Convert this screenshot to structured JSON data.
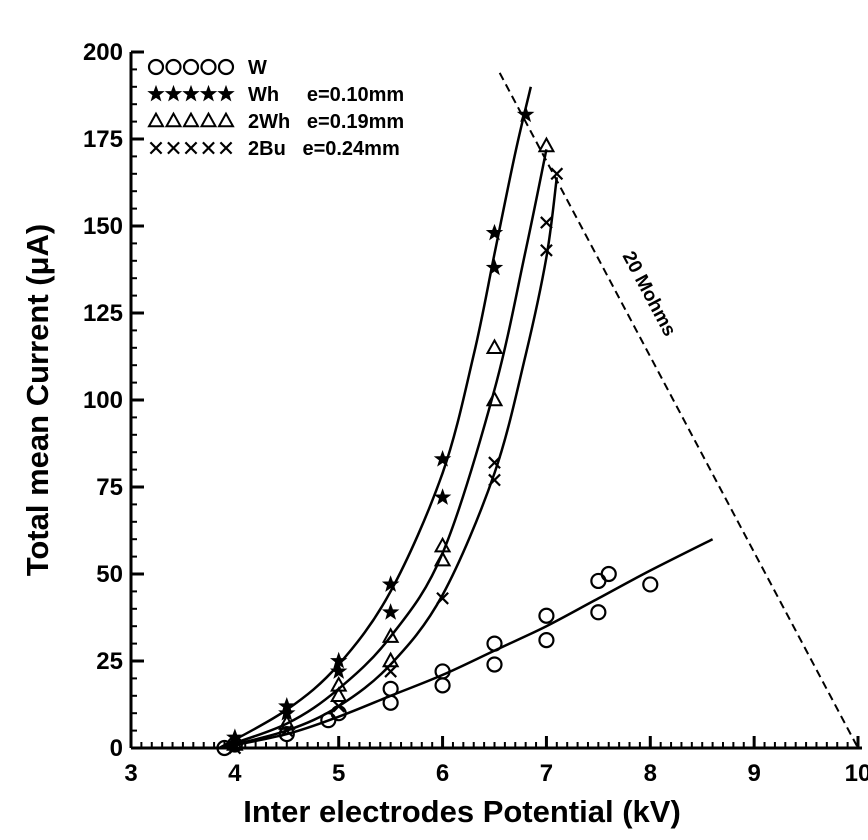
{
  "chart_data": {
    "type": "scatter",
    "title": "",
    "xlabel": "Inter electrodes Potential (kV)",
    "ylabel": "Total mean Current (μA)",
    "xlim": [
      3,
      10
    ],
    "ylim": [
      0,
      200
    ],
    "x_ticks": [
      3,
      4,
      5,
      6,
      7,
      8,
      9,
      10
    ],
    "y_ticks": [
      0,
      25,
      50,
      75,
      100,
      125,
      150,
      175,
      200
    ],
    "x_tick_labels": [
      "3",
      "4",
      "5",
      "6",
      "7",
      "8",
      "9",
      "10"
    ],
    "y_tick_labels": [
      "0",
      "25",
      "50",
      "75",
      "100",
      "125",
      "150",
      "175",
      "200"
    ],
    "grid": false,
    "legend_position": "top-left",
    "series": [
      {
        "name": "W",
        "legend_label": "W",
        "marker": "circle",
        "points": [
          [
            3.9,
            0
          ],
          [
            4.0,
            1
          ],
          [
            4.5,
            4
          ],
          [
            4.9,
            8
          ],
          [
            5.0,
            10
          ],
          [
            5.5,
            13
          ],
          [
            5.5,
            17
          ],
          [
            6.0,
            18
          ],
          [
            6.0,
            22
          ],
          [
            6.5,
            24
          ],
          [
            6.5,
            30
          ],
          [
            7.0,
            31
          ],
          [
            7.0,
            38
          ],
          [
            7.5,
            39
          ],
          [
            7.5,
            48
          ],
          [
            7.6,
            50
          ],
          [
            8.0,
            47
          ]
        ],
        "fit": [
          [
            3.85,
            0
          ],
          [
            4.5,
            4
          ],
          [
            5.0,
            9
          ],
          [
            5.5,
            15
          ],
          [
            6.0,
            21
          ],
          [
            6.5,
            28
          ],
          [
            7.0,
            35
          ],
          [
            7.5,
            43
          ],
          [
            8.0,
            51
          ],
          [
            8.6,
            60
          ]
        ]
      },
      {
        "name": "Wh",
        "legend_label": "Wh     e=0.10mm",
        "marker": "star",
        "points": [
          [
            4.0,
            3
          ],
          [
            4.5,
            10
          ],
          [
            4.5,
            12
          ],
          [
            5.0,
            22
          ],
          [
            5.0,
            25
          ],
          [
            5.5,
            39
          ],
          [
            5.5,
            47
          ],
          [
            6.0,
            72
          ],
          [
            6.0,
            83
          ],
          [
            6.5,
            138
          ],
          [
            6.5,
            148
          ],
          [
            6.8,
            182
          ]
        ],
        "fit": [
          [
            3.85,
            0
          ],
          [
            4.5,
            11
          ],
          [
            5.0,
            24
          ],
          [
            5.5,
            45
          ],
          [
            6.0,
            79
          ],
          [
            6.3,
            113
          ],
          [
            6.5,
            142
          ],
          [
            6.7,
            171
          ],
          [
            6.85,
            190
          ]
        ]
      },
      {
        "name": "2Wh",
        "legend_label": "2Wh   e=0.19mm",
        "marker": "triangle",
        "points": [
          [
            4.0,
            1
          ],
          [
            4.5,
            7
          ],
          [
            5.0,
            15
          ],
          [
            5.0,
            18
          ],
          [
            5.5,
            25
          ],
          [
            5.5,
            32
          ],
          [
            6.0,
            54
          ],
          [
            6.0,
            58
          ],
          [
            6.5,
            100
          ],
          [
            6.5,
            115
          ],
          [
            7.0,
            173
          ]
        ],
        "fit": [
          [
            3.85,
            0
          ],
          [
            4.5,
            7
          ],
          [
            5.0,
            17
          ],
          [
            5.5,
            32
          ],
          [
            6.0,
            56
          ],
          [
            6.5,
            103
          ],
          [
            6.8,
            143
          ],
          [
            7.0,
            172
          ]
        ]
      },
      {
        "name": "2Bu",
        "legend_label": "2Bu   e=0.24mm",
        "marker": "x",
        "points": [
          [
            4.0,
            0
          ],
          [
            4.5,
            5
          ],
          [
            5.0,
            12
          ],
          [
            5.5,
            22
          ],
          [
            6.0,
            43
          ],
          [
            6.5,
            77
          ],
          [
            6.5,
            82
          ],
          [
            7.0,
            143
          ],
          [
            7.0,
            151
          ],
          [
            7.1,
            165
          ]
        ],
        "fit": [
          [
            3.85,
            0
          ],
          [
            4.5,
            5
          ],
          [
            5.0,
            12
          ],
          [
            5.5,
            24
          ],
          [
            6.0,
            44
          ],
          [
            6.5,
            79
          ],
          [
            6.8,
            113
          ],
          [
            7.0,
            141
          ],
          [
            7.1,
            164
          ]
        ]
      }
    ],
    "reference_line": {
      "label": "20 Mohms",
      "style": "dashed",
      "points": [
        [
          6.55,
          194
        ],
        [
          10.0,
          0
        ]
      ]
    }
  }
}
